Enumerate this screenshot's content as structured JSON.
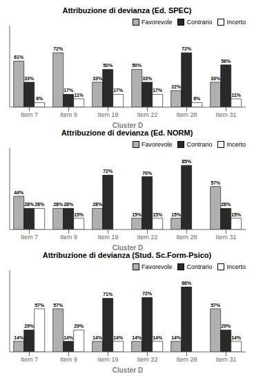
{
  "chart_data": [
    {
      "type": "bar",
      "title": "Attribuzione di devianza (Ed. SPEC)",
      "xlabel": "Cluster D",
      "categories": [
        "Item 7",
        "Item 9",
        "Item 19",
        "Item 22",
        "Item 28",
        "Item 31"
      ],
      "series": [
        {
          "name": "Favorevole",
          "color": "#b0b0b0",
          "values": [
            61,
            72,
            33,
            50,
            22,
            33
          ],
          "value_labels": [
            "61%",
            "72%",
            "33%",
            "50%",
            "22%",
            "33%"
          ]
        },
        {
          "name": "Contrario",
          "color": "#2a2a2a",
          "values": [
            33,
            17,
            50,
            33,
            72,
            56
          ],
          "value_labels": [
            "33%",
            "17%",
            "50%",
            "33%",
            "72%",
            "56%"
          ]
        },
        {
          "name": "Incerto",
          "color": "#ffffff",
          "values": [
            6,
            11,
            17,
            17,
            6,
            11
          ],
          "value_labels": [
            "6%",
            "11%",
            "17%",
            "17%",
            "6%",
            "11%"
          ]
        }
      ],
      "ylim": [
        0,
        108
      ],
      "yticks": [],
      "tick_labels": "x",
      "grid": false,
      "legend": "upper right",
      "data_labels": true
    },
    {
      "type": "bar",
      "title": "Attribuzione di devianza (Ed. NORM)",
      "xlabel": "Cluster D",
      "categories": [
        "Item 7",
        "Item 9",
        "Item 19",
        "Item 22",
        "Item 28",
        "Item 31"
      ],
      "series": [
        {
          "name": "Favorevole",
          "color": "#b0b0b0",
          "values": [
            44,
            28,
            28,
            15,
            15,
            57
          ],
          "value_labels": [
            "44%",
            "28%",
            "28%",
            "15%",
            "15%",
            "57%"
          ]
        },
        {
          "name": "Contrario",
          "color": "#2a2a2a",
          "values": [
            28,
            28,
            72,
            70,
            85,
            28
          ],
          "value_labels": [
            "28%",
            "28%",
            "72%",
            "70%",
            "85%",
            "28%"
          ]
        },
        {
          "name": "Incerto",
          "color": "#ffffff",
          "values": [
            28,
            15,
            0,
            15,
            0,
            15
          ],
          "value_labels": [
            "28%",
            "15%",
            null,
            "15%",
            null,
            "15%"
          ]
        }
      ],
      "ylim": [
        0,
        108
      ],
      "yticks": [],
      "tick_labels": "x",
      "grid": false,
      "legend": "upper right",
      "data_labels": true
    },
    {
      "type": "bar",
      "title": "Attribuzione di devianza (Stud. Sc.Form-Psico)",
      "xlabel": "Cluster D",
      "categories": [
        "Item 7",
        "Item 9",
        "Item 19",
        "Item 22",
        "Item 28",
        "Item 31"
      ],
      "series": [
        {
          "name": "Favorevole",
          "color": "#b0b0b0",
          "values": [
            14,
            57,
            14,
            14,
            14,
            57
          ],
          "value_labels": [
            "14%",
            "57%",
            "14%",
            "14%",
            "14%",
            "57%"
          ]
        },
        {
          "name": "Contrario",
          "color": "#2a2a2a",
          "values": [
            29,
            14,
            71,
            72,
            86,
            29
          ],
          "value_labels": [
            "29%",
            "14%",
            "71%",
            "72%",
            "86%",
            "29%"
          ]
        },
        {
          "name": "Incerto",
          "color": "#ffffff",
          "values": [
            57,
            29,
            14,
            14,
            0,
            14
          ],
          "value_labels": [
            "57%",
            "29%",
            "14%",
            "14%",
            null,
            "14%"
          ]
        }
      ],
      "ylim": [
        0,
        108
      ],
      "yticks": [],
      "tick_labels": "x",
      "grid": false,
      "legend": "upper right",
      "data_labels": true
    }
  ]
}
